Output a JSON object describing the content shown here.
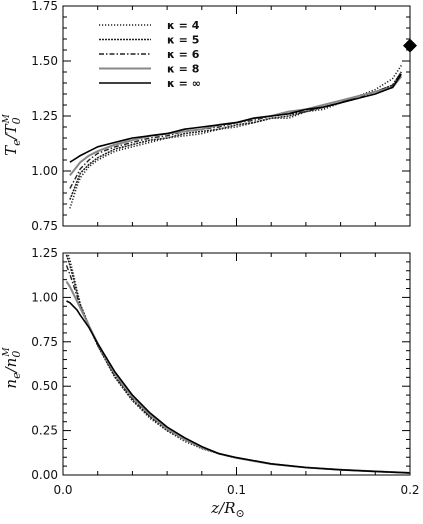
{
  "chart_data": [
    {
      "type": "line",
      "ylabel": "Te/T0M",
      "xlabel": "",
      "xlim": [
        0.0,
        0.2
      ],
      "ylim": [
        0.75,
        1.75
      ],
      "xticks": [
        0.0,
        0.1,
        0.2
      ],
      "yticks": [
        0.75,
        1.0,
        1.25,
        1.5,
        1.75
      ],
      "ytick_labels": [
        "0.75",
        "1.00",
        "1.25",
        "1.50",
        "1.75"
      ],
      "grid": false,
      "legend": {
        "placement": "top-left",
        "entries": [
          "κ = 4",
          "κ = 5",
          "κ = 6",
          "κ = 8",
          "κ = ∞"
        ]
      },
      "series": [
        {
          "name": "κ = 4",
          "dash": "dotted",
          "color": "#222222",
          "x": [
            0.004,
            0.006,
            0.008,
            0.01,
            0.015,
            0.02,
            0.03,
            0.04,
            0.05,
            0.06,
            0.07,
            0.08,
            0.09,
            0.1,
            0.11,
            0.12,
            0.13,
            0.14,
            0.15,
            0.16,
            0.17,
            0.18,
            0.19,
            0.195
          ],
          "y": [
            0.83,
            0.88,
            0.93,
            0.97,
            1.02,
            1.05,
            1.09,
            1.11,
            1.13,
            1.15,
            1.16,
            1.17,
            1.19,
            1.2,
            1.22,
            1.24,
            1.24,
            1.27,
            1.28,
            1.31,
            1.34,
            1.37,
            1.42,
            1.48
          ]
        },
        {
          "name": "κ = 5",
          "dash": "dense-dotted",
          "color": "#222222",
          "x": [
            0.004,
            0.006,
            0.008,
            0.01,
            0.015,
            0.02,
            0.03,
            0.04,
            0.05,
            0.06,
            0.07,
            0.08,
            0.09,
            0.1,
            0.11,
            0.12,
            0.13,
            0.14,
            0.15,
            0.16,
            0.17,
            0.18,
            0.19,
            0.195
          ],
          "y": [
            0.87,
            0.91,
            0.95,
            0.99,
            1.03,
            1.06,
            1.1,
            1.12,
            1.14,
            1.15,
            1.17,
            1.18,
            1.19,
            1.21,
            1.22,
            1.24,
            1.25,
            1.27,
            1.29,
            1.31,
            1.34,
            1.36,
            1.39,
            1.45
          ]
        },
        {
          "name": "κ = 6",
          "dash": "dash-dot",
          "color": "#222222",
          "x": [
            0.004,
            0.006,
            0.008,
            0.01,
            0.015,
            0.02,
            0.03,
            0.04,
            0.05,
            0.06,
            0.07,
            0.08,
            0.09,
            0.1,
            0.11,
            0.12,
            0.13,
            0.14,
            0.15,
            0.16,
            0.17,
            0.18,
            0.19,
            0.195
          ],
          "y": [
            0.92,
            0.95,
            0.98,
            1.01,
            1.05,
            1.08,
            1.11,
            1.13,
            1.15,
            1.16,
            1.18,
            1.19,
            1.2,
            1.22,
            1.23,
            1.25,
            1.26,
            1.27,
            1.29,
            1.31,
            1.33,
            1.36,
            1.39,
            1.45
          ]
        },
        {
          "name": "κ = 8",
          "dash": "solid-gray",
          "color": "#888888",
          "x": [
            0.004,
            0.006,
            0.008,
            0.01,
            0.015,
            0.02,
            0.03,
            0.04,
            0.05,
            0.06,
            0.07,
            0.08,
            0.09,
            0.1,
            0.11,
            0.12,
            0.13,
            0.14,
            0.15,
            0.16,
            0.17,
            0.18,
            0.19,
            0.195
          ],
          "y": [
            0.98,
            1.0,
            1.02,
            1.04,
            1.07,
            1.09,
            1.12,
            1.14,
            1.16,
            1.17,
            1.18,
            1.19,
            1.21,
            1.22,
            1.24,
            1.25,
            1.27,
            1.28,
            1.3,
            1.32,
            1.34,
            1.36,
            1.38,
            1.43
          ]
        },
        {
          "name": "κ = ∞",
          "dash": "solid",
          "color": "#000000",
          "x": [
            0.004,
            0.006,
            0.008,
            0.01,
            0.015,
            0.02,
            0.03,
            0.04,
            0.05,
            0.06,
            0.07,
            0.08,
            0.09,
            0.1,
            0.11,
            0.12,
            0.13,
            0.14,
            0.15,
            0.16,
            0.17,
            0.18,
            0.19,
            0.195
          ],
          "y": [
            1.04,
            1.05,
            1.06,
            1.07,
            1.09,
            1.11,
            1.13,
            1.15,
            1.16,
            1.17,
            1.19,
            1.2,
            1.21,
            1.22,
            1.24,
            1.25,
            1.26,
            1.28,
            1.29,
            1.31,
            1.33,
            1.35,
            1.38,
            1.44
          ]
        }
      ],
      "markers": [
        {
          "shape": "diamond",
          "x": 0.2,
          "y": 1.57,
          "color": "#000000"
        }
      ]
    },
    {
      "type": "line",
      "ylabel": "ne/n0M",
      "xlabel": "z/R⊙",
      "xlim": [
        0.0,
        0.2
      ],
      "ylim": [
        0.0,
        1.25
      ],
      "xticks": [
        0.0,
        0.1,
        0.2
      ],
      "xtick_labels": [
        "0.0",
        "0.1",
        "0.2"
      ],
      "yticks": [
        0.0,
        0.25,
        0.5,
        0.75,
        1.0,
        1.25
      ],
      "ytick_labels": [
        "0.00",
        "0.25",
        "0.50",
        "0.75",
        "1.00",
        "1.25"
      ],
      "grid": false,
      "series": [
        {
          "name": "κ = 4",
          "dash": "dotted",
          "color": "#222222",
          "x": [
            0.002,
            0.004,
            0.006,
            0.008,
            0.01,
            0.015,
            0.02,
            0.03,
            0.04,
            0.05,
            0.06,
            0.07,
            0.08,
            0.09,
            0.1,
            0.12,
            0.14,
            0.16,
            0.18,
            0.2
          ],
          "y": [
            1.27,
            1.21,
            1.13,
            1.04,
            0.96,
            0.84,
            0.73,
            0.55,
            0.42,
            0.32,
            0.25,
            0.19,
            0.15,
            0.12,
            0.095,
            0.062,
            0.042,
            0.03,
            0.02,
            0.012
          ]
        },
        {
          "name": "κ = 5",
          "dash": "dense-dotted",
          "color": "#222222",
          "x": [
            0.002,
            0.004,
            0.006,
            0.008,
            0.01,
            0.015,
            0.02,
            0.03,
            0.04,
            0.05,
            0.06,
            0.07,
            0.08,
            0.09,
            0.1,
            0.12,
            0.14,
            0.16,
            0.18,
            0.2
          ],
          "y": [
            1.24,
            1.18,
            1.11,
            1.03,
            0.96,
            0.84,
            0.73,
            0.55,
            0.42,
            0.33,
            0.25,
            0.2,
            0.15,
            0.12,
            0.095,
            0.062,
            0.042,
            0.029,
            0.02,
            0.012
          ]
        },
        {
          "name": "κ = 6",
          "dash": "dash-dot",
          "color": "#222222",
          "x": [
            0.002,
            0.004,
            0.006,
            0.008,
            0.01,
            0.015,
            0.02,
            0.03,
            0.04,
            0.05,
            0.06,
            0.07,
            0.08,
            0.09,
            0.1,
            0.12,
            0.14,
            0.16,
            0.18,
            0.2
          ],
          "y": [
            1.18,
            1.13,
            1.07,
            1.01,
            0.95,
            0.84,
            0.73,
            0.56,
            0.43,
            0.33,
            0.26,
            0.2,
            0.155,
            0.12,
            0.096,
            0.062,
            0.042,
            0.029,
            0.02,
            0.012
          ]
        },
        {
          "name": "κ = 8",
          "dash": "solid-gray",
          "color": "#888888",
          "x": [
            0.002,
            0.004,
            0.006,
            0.008,
            0.01,
            0.015,
            0.02,
            0.03,
            0.04,
            0.05,
            0.06,
            0.07,
            0.08,
            0.09,
            0.1,
            0.12,
            0.14,
            0.16,
            0.18,
            0.2
          ],
          "y": [
            1.09,
            1.06,
            1.02,
            0.98,
            0.94,
            0.84,
            0.74,
            0.57,
            0.44,
            0.34,
            0.26,
            0.2,
            0.155,
            0.12,
            0.097,
            0.062,
            0.042,
            0.029,
            0.02,
            0.012
          ]
        },
        {
          "name": "κ = ∞",
          "dash": "solid",
          "color": "#000000",
          "x": [
            0.002,
            0.004,
            0.006,
            0.008,
            0.01,
            0.015,
            0.02,
            0.03,
            0.04,
            0.05,
            0.06,
            0.07,
            0.08,
            0.09,
            0.1,
            0.12,
            0.14,
            0.16,
            0.18,
            0.2
          ],
          "y": [
            0.98,
            0.97,
            0.95,
            0.93,
            0.9,
            0.83,
            0.74,
            0.58,
            0.45,
            0.35,
            0.27,
            0.21,
            0.16,
            0.12,
            0.098,
            0.063,
            0.042,
            0.029,
            0.02,
            0.012
          ]
        }
      ]
    }
  ],
  "text": {
    "top_ylabel_main": "T",
    "top_ylabel_sub": "e",
    "top_ylabel_den": "/T",
    "top_ylabel_den_sub": "0",
    "top_ylabel_den_sup": "M",
    "bottom_ylabel_main": "n",
    "bottom_ylabel_sub": "e",
    "bottom_ylabel_den": "/n",
    "bottom_ylabel_den_sub": "0",
    "bottom_ylabel_den_sup": "M",
    "xlabel_main": "z/R",
    "xlabel_sub": "⊙"
  }
}
